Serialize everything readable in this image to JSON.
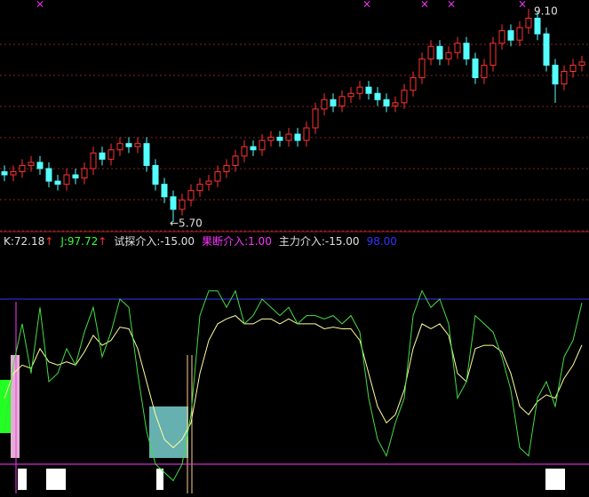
{
  "chart_data": [
    {
      "type": "candlestick",
      "open": [
        6.5,
        6.45,
        6.5,
        6.6,
        6.65,
        6.55,
        6.35,
        6.3,
        6.45,
        6.4,
        6.55,
        6.8,
        6.7,
        6.85,
        6.95,
        6.9,
        6.95,
        6.6,
        6.3,
        6.1,
        5.9,
        6.05,
        6.2,
        6.3,
        6.35,
        6.5,
        6.6,
        6.75,
        6.9,
        6.85,
        7.0,
        7.05,
        7.0,
        7.1,
        7.0,
        7.2,
        7.5,
        7.65,
        7.55,
        7.7,
        7.75,
        7.85,
        7.75,
        7.65,
        7.55,
        7.6,
        7.8,
        8.0,
        8.3,
        8.5,
        8.3,
        8.4,
        8.55,
        8.3,
        8.0,
        8.2,
        8.55,
        8.75,
        8.6,
        8.8,
        8.95,
        8.7,
        8.2,
        7.9,
        8.1,
        8.2
      ],
      "high": [
        6.6,
        6.6,
        6.7,
        6.75,
        6.75,
        6.65,
        6.45,
        6.55,
        6.55,
        6.65,
        6.9,
        6.9,
        6.95,
        7.05,
        7.05,
        7.05,
        7.05,
        6.7,
        6.4,
        6.2,
        6.15,
        6.3,
        6.4,
        6.45,
        6.6,
        6.7,
        6.85,
        7.0,
        7.0,
        7.1,
        7.15,
        7.15,
        7.2,
        7.2,
        7.3,
        7.6,
        7.75,
        7.75,
        7.8,
        7.85,
        7.95,
        7.95,
        7.85,
        7.75,
        7.7,
        7.9,
        8.1,
        8.4,
        8.6,
        8.6,
        8.5,
        8.65,
        8.65,
        8.4,
        8.3,
        8.65,
        8.85,
        8.85,
        8.9,
        9.1,
        9.05,
        8.8,
        8.3,
        8.2,
        8.3,
        8.35
      ],
      "low": [
        6.35,
        6.35,
        6.4,
        6.5,
        6.45,
        6.25,
        6.2,
        6.2,
        6.3,
        6.3,
        6.45,
        6.6,
        6.6,
        6.75,
        6.8,
        6.8,
        6.5,
        6.2,
        6.0,
        5.7,
        5.8,
        5.95,
        6.1,
        6.2,
        6.25,
        6.4,
        6.5,
        6.65,
        6.75,
        6.75,
        6.9,
        6.9,
        6.9,
        6.9,
        6.9,
        7.1,
        7.4,
        7.45,
        7.45,
        7.6,
        7.65,
        7.65,
        7.55,
        7.45,
        7.45,
        7.5,
        7.7,
        7.9,
        8.2,
        8.2,
        8.2,
        8.3,
        8.2,
        7.9,
        7.9,
        8.1,
        8.45,
        8.5,
        8.5,
        8.7,
        8.6,
        8.1,
        7.6,
        7.8,
        8.0,
        8.1
      ],
      "close": [
        6.45,
        6.5,
        6.6,
        6.65,
        6.55,
        6.35,
        6.3,
        6.45,
        6.4,
        6.55,
        6.8,
        6.7,
        6.85,
        6.95,
        6.9,
        6.95,
        6.6,
        6.3,
        6.1,
        5.9,
        6.05,
        6.2,
        6.3,
        6.35,
        6.5,
        6.6,
        6.75,
        6.9,
        6.85,
        7.0,
        7.05,
        7.0,
        7.1,
        7.0,
        7.2,
        7.5,
        7.65,
        7.55,
        7.7,
        7.75,
        7.85,
        7.75,
        7.65,
        7.55,
        7.6,
        7.8,
        8.0,
        8.3,
        8.5,
        8.3,
        8.4,
        8.55,
        8.3,
        8.0,
        8.2,
        8.55,
        8.75,
        8.6,
        8.8,
        8.95,
        8.7,
        8.2,
        7.9,
        8.1,
        8.2,
        8.25
      ],
      "up_color": "#ff3232",
      "down_color": "#54ffff",
      "ylim": [
        5.53,
        9.24
      ],
      "annotations": [
        {
          "value": 9.1,
          "label": "9.10"
        },
        {
          "value": 5.7,
          "label": "←5.70"
        }
      ],
      "signal_symbol": "×",
      "signal_color": "#ff33ff"
    },
    {
      "type": "line",
      "legend": [
        {
          "text": "K:72.18",
          "arrow": "↑",
          "color": "#e0e0e0"
        },
        {
          "text": "J:97.72",
          "arrow": "↑",
          "color": "#33ff33"
        },
        {
          "text": "试探介入:-15.00",
          "color": "#e0e0e0"
        },
        {
          "text": "果断介入:1.00",
          "color": "#ff33ff"
        },
        {
          "text": "主力介入:-15.00",
          "color": "#e0e0e0"
        },
        {
          "text": "98.00",
          "color": "#3333ff"
        }
      ],
      "arrow_color": "#ff3232",
      "series": [
        {
          "name": "K",
          "color": "#ffff99",
          "values": [
            40,
            55,
            60,
            58,
            70,
            62,
            60,
            62,
            60,
            68,
            78,
            72,
            75,
            83,
            82,
            70,
            50,
            30,
            15,
            10,
            15,
            25,
            55,
            75,
            85,
            88,
            90,
            85,
            85,
            88,
            88,
            85,
            88,
            85,
            85,
            85,
            82,
            83,
            82,
            82,
            75,
            55,
            35,
            25,
            30,
            45,
            70,
            85,
            82,
            85,
            78,
            55,
            50,
            70,
            72,
            72,
            68,
            55,
            35,
            30,
            38,
            42,
            40,
            52,
            60,
            72.18
          ]
        },
        {
          "name": "J",
          "color": "#44dd44",
          "values": [
            20,
            60,
            85,
            55,
            95,
            50,
            55,
            70,
            60,
            80,
            95,
            65,
            80,
            100,
            95,
            55,
            20,
            0,
            -5,
            -10,
            0,
            30,
            90,
            105,
            105,
            95,
            105,
            85,
            90,
            100,
            95,
            90,
            95,
            85,
            90,
            90,
            88,
            90,
            85,
            90,
            80,
            40,
            15,
            5,
            25,
            40,
            90,
            105,
            95,
            100,
            85,
            40,
            50,
            90,
            85,
            80,
            65,
            45,
            10,
            5,
            40,
            50,
            35,
            65,
            75,
            97.72
          ]
        }
      ],
      "levels": [
        {
          "value": 100,
          "color": "#3333ff"
        },
        {
          "value": 0,
          "color": "#ff33ff"
        }
      ],
      "ylim": [
        -20,
        120
      ]
    }
  ]
}
